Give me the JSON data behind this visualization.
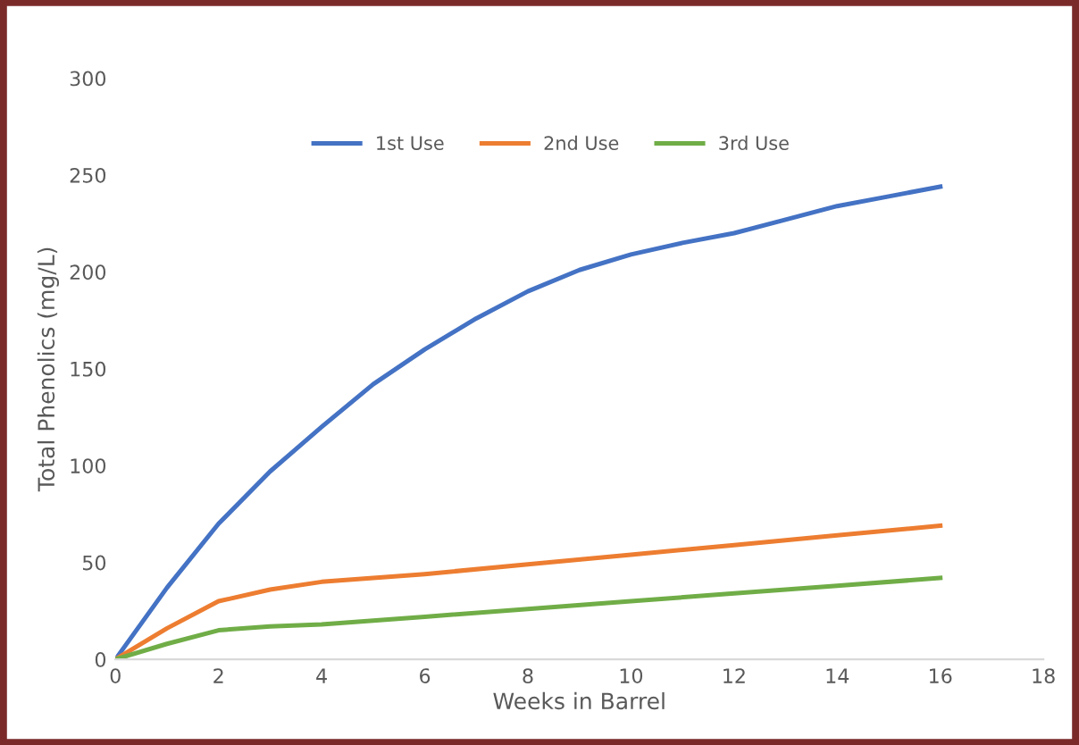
{
  "chart_data": {
    "type": "line",
    "xlabel": "Weeks in Barrel",
    "ylabel": "Total Phenolics (mg/L)",
    "xlim": [
      0,
      18
    ],
    "xticks": [
      0,
      2,
      4,
      6,
      8,
      10,
      12,
      14,
      16,
      18
    ],
    "ylim": [
      0,
      300
    ],
    "yticks": [
      0,
      50,
      100,
      150,
      200,
      250,
      300
    ],
    "grid": false,
    "legend": "top",
    "marker": "none",
    "line_style": "solid",
    "series": [
      {
        "name": "1st Use",
        "color": "#4472c4",
        "x": [
          0,
          1,
          2,
          3,
          4,
          5,
          6,
          7,
          8,
          9,
          10,
          11,
          12,
          13,
          14,
          15,
          16
        ],
        "values": [
          0,
          37,
          70,
          97,
          120,
          142,
          160,
          176,
          190,
          201,
          209,
          215,
          220,
          227,
          234,
          239,
          244
        ]
      },
      {
        "name": "2nd Use",
        "color": "#ed7d31",
        "x": [
          0,
          1,
          2,
          3,
          4,
          6,
          8,
          10,
          12,
          14,
          16
        ],
        "values": [
          0,
          16,
          30,
          36,
          40,
          44,
          49,
          54,
          59,
          64,
          69
        ]
      },
      {
        "name": "3rd Use",
        "color": "#70ad47",
        "x": [
          0,
          1,
          2,
          3,
          4,
          6,
          8,
          10,
          12,
          14,
          16
        ],
        "values": [
          0,
          8,
          15,
          17,
          18,
          22,
          26,
          30,
          34,
          38,
          42
        ]
      }
    ]
  }
}
